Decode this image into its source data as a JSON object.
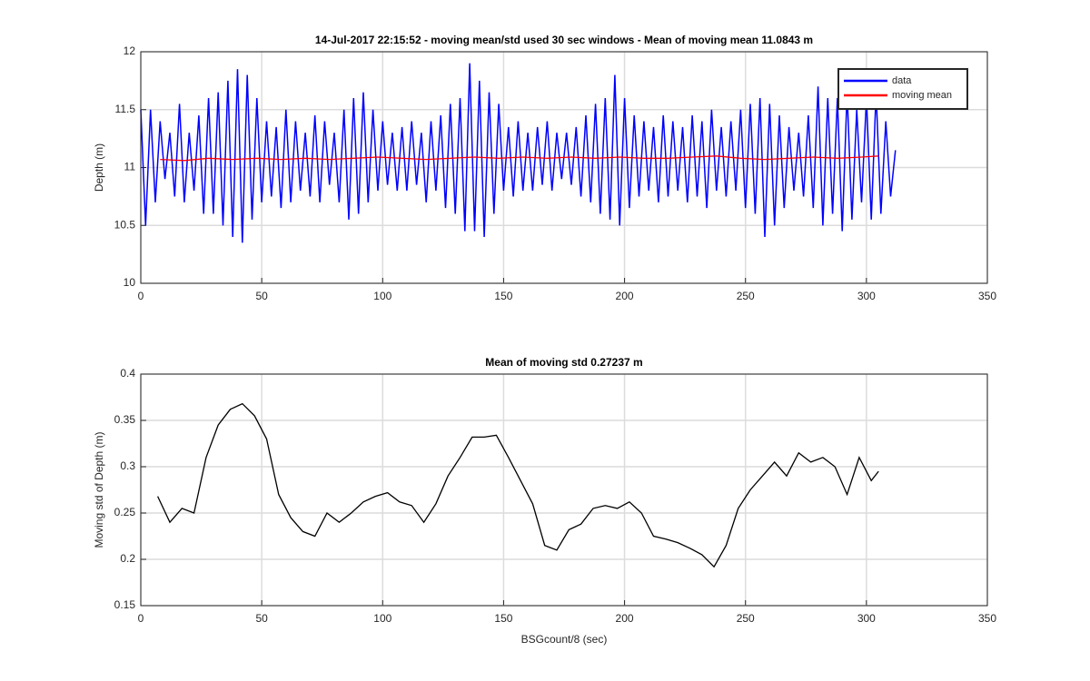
{
  "chart_data": [
    {
      "type": "line",
      "title": "14-Jul-2017 22:15:52 - moving mean/std used 30 sec windows - Mean of moving mean 11.0843 m",
      "ylabel": "Depth (m)",
      "xlim": [
        0,
        350
      ],
      "xticks": [
        0,
        50,
        100,
        150,
        200,
        250,
        300,
        350
      ],
      "ylim": [
        10,
        12
      ],
      "yticks": [
        10,
        10.5,
        11,
        11.5,
        12
      ],
      "grid": true,
      "legend": "northeast",
      "series": [
        {
          "name": "data",
          "color": "#0000ff",
          "x": [
            0,
            2,
            4,
            6,
            8,
            10,
            12,
            14,
            16,
            18,
            20,
            22,
            24,
            26,
            28,
            30,
            32,
            34,
            36,
            38,
            40,
            42,
            44,
            46,
            48,
            50,
            52,
            54,
            56,
            58,
            60,
            62,
            64,
            66,
            68,
            70,
            72,
            74,
            76,
            78,
            80,
            82,
            84,
            86,
            88,
            90,
            92,
            94,
            96,
            98,
            100,
            102,
            104,
            106,
            108,
            110,
            112,
            114,
            116,
            118,
            120,
            122,
            124,
            126,
            128,
            130,
            132,
            134,
            136,
            138,
            140,
            142,
            144,
            146,
            148,
            150,
            152,
            154,
            156,
            158,
            160,
            162,
            164,
            166,
            168,
            170,
            172,
            174,
            176,
            178,
            180,
            182,
            184,
            186,
            188,
            190,
            192,
            194,
            196,
            198,
            200,
            202,
            204,
            206,
            208,
            210,
            212,
            214,
            216,
            218,
            220,
            222,
            224,
            226,
            228,
            230,
            232,
            234,
            236,
            238,
            240,
            242,
            244,
            246,
            248,
            250,
            252,
            254,
            256,
            258,
            260,
            262,
            264,
            266,
            268,
            270,
            272,
            274,
            276,
            278,
            280,
            282,
            284,
            286,
            288,
            290,
            292,
            294,
            296,
            298,
            300,
            302,
            304,
            306,
            308,
            310,
            312
          ],
          "values": [
            11.5,
            10.5,
            11.5,
            10.7,
            11.4,
            10.9,
            11.3,
            10.75,
            11.55,
            10.7,
            11.3,
            10.8,
            11.45,
            10.6,
            11.6,
            10.6,
            11.65,
            10.5,
            11.75,
            10.4,
            11.85,
            10.35,
            11.8,
            10.55,
            11.6,
            10.7,
            11.4,
            10.75,
            11.35,
            10.65,
            11.5,
            10.7,
            11.4,
            10.8,
            11.3,
            10.75,
            11.45,
            10.7,
            11.4,
            10.85,
            11.3,
            10.7,
            11.5,
            10.55,
            11.6,
            10.6,
            11.65,
            10.7,
            11.5,
            10.8,
            11.4,
            10.85,
            11.3,
            10.8,
            11.35,
            10.8,
            11.4,
            10.85,
            11.3,
            10.7,
            11.4,
            10.8,
            11.45,
            10.65,
            11.55,
            10.6,
            11.6,
            10.45,
            11.9,
            10.45,
            11.75,
            10.4,
            11.65,
            10.6,
            11.55,
            10.8,
            11.35,
            10.75,
            11.4,
            10.8,
            11.3,
            10.8,
            11.35,
            10.85,
            11.4,
            10.8,
            11.3,
            10.9,
            11.3,
            10.85,
            11.35,
            10.75,
            11.45,
            10.7,
            11.55,
            10.6,
            11.6,
            10.55,
            11.8,
            10.5,
            11.6,
            10.65,
            11.45,
            10.75,
            11.4,
            10.8,
            11.35,
            10.7,
            11.45,
            10.75,
            11.4,
            10.8,
            11.35,
            10.7,
            11.45,
            10.75,
            11.4,
            10.65,
            11.5,
            10.8,
            11.35,
            10.75,
            11.4,
            10.8,
            11.5,
            10.65,
            11.55,
            10.6,
            11.6,
            10.4,
            11.55,
            10.5,
            11.45,
            10.65,
            11.35,
            10.8,
            11.3,
            10.75,
            11.45,
            10.65,
            11.7,
            10.5,
            11.6,
            10.6,
            11.6,
            10.45,
            11.65,
            10.55,
            11.5,
            10.7,
            11.6,
            10.55,
            11.65,
            10.6,
            11.4,
            10.75,
            11.15
          ]
        },
        {
          "name": "moving mean",
          "color": "#ff0000",
          "x": [
            8,
            18,
            28,
            38,
            48,
            58,
            68,
            78,
            88,
            98,
            108,
            118,
            128,
            138,
            148,
            158,
            168,
            178,
            188,
            198,
            208,
            218,
            228,
            238,
            248,
            258,
            268,
            278,
            288,
            298,
            305
          ],
          "values": [
            11.07,
            11.06,
            11.08,
            11.07,
            11.08,
            11.07,
            11.08,
            11.07,
            11.08,
            11.09,
            11.08,
            11.07,
            11.08,
            11.09,
            11.08,
            11.09,
            11.08,
            11.09,
            11.08,
            11.09,
            11.08,
            11.08,
            11.09,
            11.1,
            11.08,
            11.07,
            11.08,
            11.09,
            11.08,
            11.09,
            11.1
          ]
        }
      ]
    },
    {
      "type": "line",
      "title": "Mean of moving std 0.27237 m",
      "xlabel": "BSGcount/8 (sec)",
      "ylabel": "Moving std of Depth (m)",
      "xlim": [
        0,
        350
      ],
      "xticks": [
        0,
        50,
        100,
        150,
        200,
        250,
        300,
        350
      ],
      "ylim": [
        0.15,
        0.4
      ],
      "yticks": [
        0.15,
        0.2,
        0.25,
        0.3,
        0.35,
        0.4
      ],
      "grid": true,
      "series": [
        {
          "color": "#000000",
          "x": [
            7,
            12,
            17,
            22,
            27,
            32,
            37,
            42,
            47,
            52,
            57,
            62,
            67,
            72,
            77,
            82,
            87,
            92,
            97,
            102,
            107,
            112,
            117,
            122,
            127,
            132,
            137,
            142,
            147,
            152,
            157,
            162,
            167,
            172,
            177,
            182,
            187,
            192,
            197,
            202,
            207,
            212,
            217,
            222,
            227,
            232,
            237,
            242,
            247,
            252,
            257,
            262,
            267,
            272,
            277,
            282,
            287,
            292,
            297,
            302,
            305
          ],
          "values": [
            0.268,
            0.24,
            0.255,
            0.25,
            0.31,
            0.345,
            0.362,
            0.368,
            0.355,
            0.33,
            0.27,
            0.245,
            0.23,
            0.225,
            0.25,
            0.24,
            0.25,
            0.262,
            0.268,
            0.272,
            0.262,
            0.258,
            0.24,
            0.26,
            0.29,
            0.31,
            0.332,
            0.332,
            0.334,
            0.31,
            0.285,
            0.26,
            0.215,
            0.21,
            0.232,
            0.238,
            0.255,
            0.258,
            0.255,
            0.262,
            0.25,
            0.225,
            0.222,
            0.218,
            0.212,
            0.205,
            0.192,
            0.215,
            0.255,
            0.275,
            0.29,
            0.305,
            0.29,
            0.315,
            0.305,
            0.31,
            0.3,
            0.27,
            0.31,
            0.285,
            0.295
          ]
        }
      ]
    }
  ]
}
